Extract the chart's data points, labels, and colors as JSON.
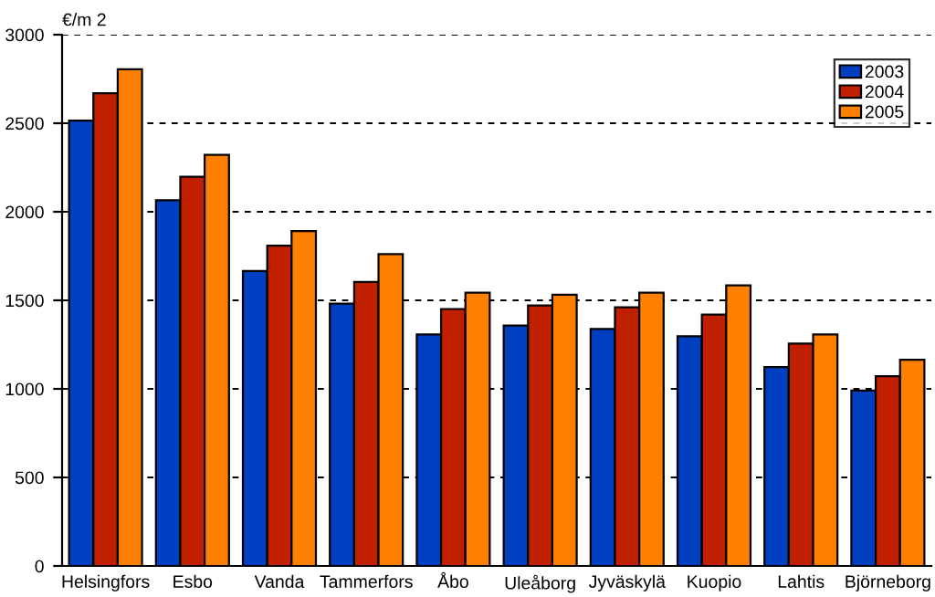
{
  "chart_data": {
    "type": "bar",
    "ylabel": "€/m 2",
    "categories": [
      "Helsingfors",
      "Esbo",
      "Vanda",
      "Tammerfors",
      "Åbo",
      "Uleåborg",
      "Jyväskylä",
      "Kuopio",
      "Lahtis",
      "Björneborg"
    ],
    "series": [
      {
        "name": "2003",
        "color": "#0040c0",
        "values": [
          2515,
          2065,
          1666,
          1481,
          1307,
          1358,
          1338,
          1297,
          1123,
          990
        ]
      },
      {
        "name": "2004",
        "color": "#c02000",
        "values": [
          2669,
          2198,
          1809,
          1604,
          1451,
          1471,
          1461,
          1420,
          1256,
          1072
        ]
      },
      {
        "name": "2005",
        "color": "#ff8000",
        "values": [
          2805,
          2321,
          1891,
          1761,
          1543,
          1532,
          1543,
          1584,
          1307,
          1164
        ]
      }
    ],
    "ylim": [
      0,
      3000
    ],
    "yticks": [
      0,
      500,
      1000,
      1500,
      2000,
      2500,
      3000
    ],
    "grid": "y",
    "legend": "top right"
  }
}
